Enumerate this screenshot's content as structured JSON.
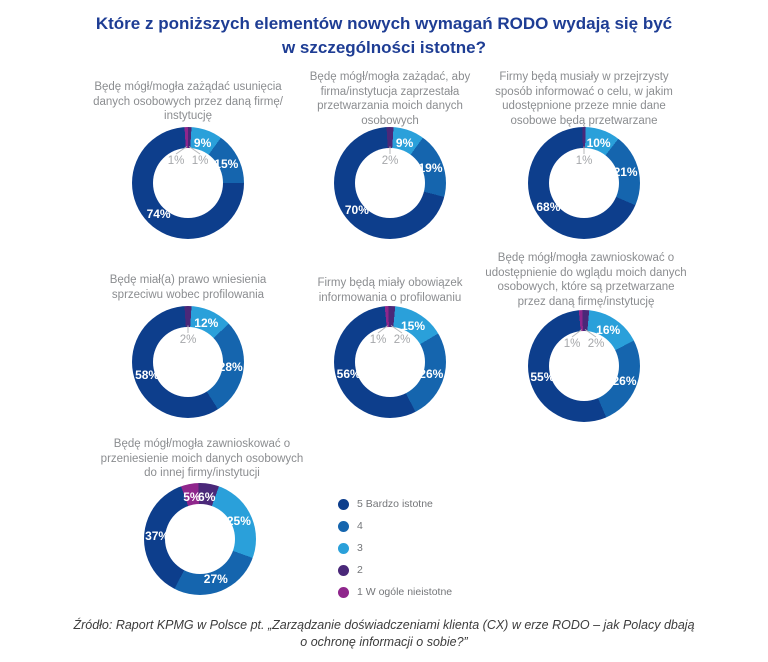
{
  "title": {
    "line1": "Które z poniższych elementów nowych wymagań RODO wydają się być",
    "line2": "w szczególności istotne?"
  },
  "colors": {
    "title_navy": "#1E3D94",
    "categories": {
      "1": "#8F268C",
      "2": "#4A2879",
      "3": "#2AA0DA",
      "4": "#1565AE",
      "5": "#0D3E8C"
    },
    "label_gray": "#8B8D90",
    "callout_gray": "#A5A7AA"
  },
  "legend": [
    {
      "label": "5 Bardzo istotne",
      "color": "#0D3E8C"
    },
    {
      "label": "4",
      "color": "#1565AE"
    },
    {
      "label": "3",
      "color": "#2AA0DA"
    },
    {
      "label": "2",
      "color": "#4A2879"
    },
    {
      "label": "1 W ogóle nieistotne",
      "color": "#8F268C"
    }
  ],
  "source": {
    "line1": "Źródło: Raport KPMG w Polsce pt. „Zarządzanie doświadczeniami klienta (CX) w erze RODO – jak Polacy dbają",
    "line2": "o ochronę informacji o sobie?”"
  },
  "chart_data": [
    {
      "type": "donut",
      "title": "Będę mógł/mogła zażądać usunięcia danych osobowych przez daną firmę/ instytucję",
      "segments": [
        {
          "cat": 1,
          "category": "1 W ogóle nieistotne",
          "value": 1,
          "display": "1%",
          "placement": "callout"
        },
        {
          "cat": 2,
          "category": "2",
          "value": 1,
          "display": "1%",
          "placement": "callout"
        },
        {
          "cat": 3,
          "category": "3",
          "value": 9,
          "display": "9%",
          "placement": "ring"
        },
        {
          "cat": 4,
          "category": "4",
          "value": 15,
          "display": "15%",
          "placement": "ring"
        },
        {
          "cat": 5,
          "category": "5 Bardzo istotne",
          "value": 74,
          "display": "74%",
          "placement": "ring"
        }
      ]
    },
    {
      "type": "donut",
      "title": "Będę mógł/mogła zażądać, aby firma/instytucja zaprzestała przetwarzania moich danych osobowych",
      "segments": [
        {
          "cat": 2,
          "category": "2",
          "value": 2,
          "display": "2%",
          "placement": "callout"
        },
        {
          "cat": 3,
          "category": "3",
          "value": 9,
          "display": "9%",
          "placement": "ring"
        },
        {
          "cat": 4,
          "category": "4",
          "value": 19,
          "display": "19%",
          "placement": "ring"
        },
        {
          "cat": 5,
          "category": "5 Bardzo istotne",
          "value": 70,
          "display": "70%",
          "placement": "ring"
        }
      ]
    },
    {
      "type": "donut",
      "title": "Firmy będą musiały w przejrzysty sposób informować o celu, w jakim udostępnione przeze mnie dane osobowe będą przetwarzane",
      "segments": [
        {
          "cat": 2,
          "category": "2",
          "value": 1,
          "display": "1%",
          "placement": "callout"
        },
        {
          "cat": 3,
          "category": "3",
          "value": 10,
          "display": "10%",
          "placement": "ring"
        },
        {
          "cat": 4,
          "category": "4",
          "value": 21,
          "display": "21%",
          "placement": "ring"
        },
        {
          "cat": 5,
          "category": "5 Bardzo istotne",
          "value": 68,
          "display": "68%",
          "placement": "ring"
        }
      ]
    },
    {
      "type": "donut",
      "title": "Będę miał(a) prawo wniesienia sprzeciwu wobec profilowania",
      "segments": [
        {
          "cat": 2,
          "category": "2",
          "value": 2,
          "display": "2%",
          "placement": "callout"
        },
        {
          "cat": 3,
          "category": "3",
          "value": 12,
          "display": "12%",
          "placement": "ring"
        },
        {
          "cat": 4,
          "category": "4",
          "value": 28,
          "display": "28%",
          "placement": "ring"
        },
        {
          "cat": 5,
          "category": "5 Bardzo istotne",
          "value": 58,
          "display": "58%",
          "placement": "ring"
        }
      ]
    },
    {
      "type": "donut",
      "title": "Firmy będą miały obowiązek informowania o profilowaniu",
      "segments": [
        {
          "cat": 1,
          "category": "1 W ogóle nieistotne",
          "value": 1,
          "display": "1%",
          "placement": "callout"
        },
        {
          "cat": 2,
          "category": "2",
          "value": 2,
          "display": "2%",
          "placement": "callout"
        },
        {
          "cat": 3,
          "category": "3",
          "value": 15,
          "display": "15%",
          "placement": "ring"
        },
        {
          "cat": 4,
          "category": "4",
          "value": 26,
          "display": "26%",
          "placement": "ring"
        },
        {
          "cat": 5,
          "category": "5 Bardzo istotne",
          "value": 56,
          "display": "56%",
          "placement": "ring"
        }
      ]
    },
    {
      "type": "donut",
      "title": "Będę mógł/mogła zawnioskować o udostępnienie do wglądu moich danych osobowych, które są przetwarzane przez daną firmę/instytucję",
      "segments": [
        {
          "cat": 1,
          "category": "1 W ogóle nieistotne",
          "value": 1,
          "display": "1%",
          "placement": "callout"
        },
        {
          "cat": 2,
          "category": "2",
          "value": 2,
          "display": "2%",
          "placement": "callout"
        },
        {
          "cat": 3,
          "category": "3",
          "value": 16,
          "display": "16%",
          "placement": "ring"
        },
        {
          "cat": 4,
          "category": "4",
          "value": 26,
          "display": "26%",
          "placement": "ring"
        },
        {
          "cat": 5,
          "category": "5 Bardzo istotne",
          "value": 55,
          "display": "55%",
          "placement": "ring"
        }
      ]
    },
    {
      "type": "donut",
      "title": "Będę mógł/mogła zawnioskować o przeniesienie moich danych osobowych do innej firmy/instytucji",
      "segments": [
        {
          "cat": 1,
          "category": "1 W ogóle nieistotne",
          "value": 5,
          "display": "5%",
          "placement": "ring"
        },
        {
          "cat": 2,
          "category": "2",
          "value": 6,
          "display": "6%",
          "placement": "ring"
        },
        {
          "cat": 3,
          "category": "3",
          "value": 25,
          "display": "25%",
          "placement": "ring"
        },
        {
          "cat": 4,
          "category": "4",
          "value": 27,
          "display": "27%",
          "placement": "ring"
        },
        {
          "cat": 5,
          "category": "5 Bardzo istotne",
          "value": 37,
          "display": "37%",
          "placement": "ring"
        }
      ]
    }
  ]
}
